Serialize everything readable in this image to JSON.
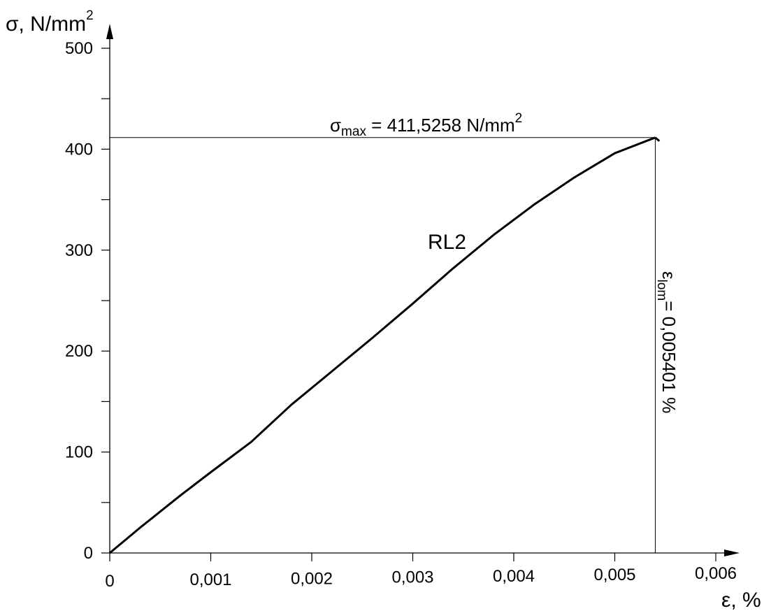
{
  "chart_data": {
    "type": "line",
    "title": "",
    "xlabel": "ε, %",
    "ylabel": "σ, N/mm²",
    "x_unit_text": "ε, %",
    "y_unit_text": "σ, N/mm",
    "y_unit_power": "2",
    "xlim": [
      0,
      0.006
    ],
    "ylim": [
      0,
      500
    ],
    "x_ticks": [
      0,
      0.001,
      0.002,
      0.003,
      0.004,
      0.005,
      0.006
    ],
    "x_tick_labels": [
      "0",
      "0,001",
      "0,002",
      "0,003",
      "0,004",
      "0,005",
      "0,006"
    ],
    "y_ticks": [
      0,
      50,
      100,
      150,
      200,
      250,
      300,
      350,
      400,
      450,
      500
    ],
    "y_tick_labels": [
      "0",
      "",
      "100",
      "",
      "200",
      "",
      "300",
      "",
      "400",
      "",
      "500"
    ],
    "grid": false,
    "series": [
      {
        "name": "RL2",
        "color": "#000000",
        "x": [
          0,
          0.0003,
          0.0007,
          0.001,
          0.0014,
          0.0018,
          0.0022,
          0.0026,
          0.003,
          0.0034,
          0.0038,
          0.0042,
          0.0046,
          0.005,
          0.0054
        ],
        "y": [
          0,
          25,
          57,
          80,
          110,
          147,
          180,
          213,
          247,
          282,
          315,
          345,
          372,
          396,
          411.5258
        ]
      }
    ],
    "annotations": {
      "sigma_max": {
        "symbol": "σ",
        "subscript": "max",
        "text": " = 411,5258 N/mm",
        "power": "2",
        "value": 411.5258
      },
      "eps_lom": {
        "symbol": "ε",
        "subscript": "lom",
        "text": "= 0,005401 %",
        "value": 0.005401
      }
    }
  }
}
